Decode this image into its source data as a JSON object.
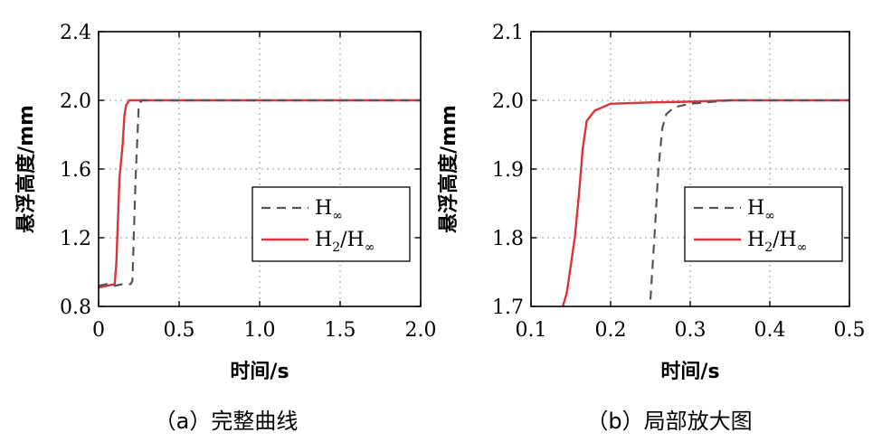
{
  "chart_data": [
    {
      "type": "line",
      "xlabel": "时间/s",
      "ylabel": "悬浮高度/mm",
      "caption": "（a）完整曲线",
      "xlim": [
        0,
        2.0
      ],
      "ylim": [
        0.8,
        2.4
      ],
      "xticks": [
        "0",
        "0.5",
        "1.0",
        "1.5",
        "2.0"
      ],
      "yticks": [
        "0.8",
        "1.2",
        "1.6",
        "2.0",
        "2.4"
      ],
      "grid": true,
      "legend_position": "center-right",
      "series": [
        {
          "name": "H∞",
          "style": "dashed",
          "color": "#555555",
          "x": [
            0,
            0.05,
            0.1,
            0.15,
            0.2,
            0.21,
            0.23,
            0.25,
            0.27,
            0.3,
            0.5,
            1.0,
            1.5,
            2.0
          ],
          "y": [
            0.92,
            0.93,
            0.92,
            0.93,
            0.93,
            0.95,
            1.55,
            1.98,
            2.0,
            2.0,
            2.0,
            2.0,
            2.0,
            2.0
          ]
        },
        {
          "name": "H2/H∞",
          "style": "solid",
          "color": "#d9343c",
          "x": [
            0,
            0.05,
            0.1,
            0.11,
            0.13,
            0.15,
            0.16,
            0.17,
            0.19,
            0.25,
            0.5,
            1.0,
            1.5,
            2.0
          ],
          "y": [
            0.91,
            0.92,
            0.93,
            1.05,
            1.55,
            1.75,
            1.91,
            1.97,
            2.0,
            2.0,
            2.0,
            2.0,
            2.0,
            2.0
          ]
        }
      ]
    },
    {
      "type": "line",
      "xlabel": "时间/s",
      "ylabel": "悬浮高度/mm",
      "caption": "（b）局部放大图",
      "xlim": [
        0.1,
        0.5
      ],
      "ylim": [
        1.7,
        2.1
      ],
      "xticks": [
        "0.1",
        "0.2",
        "0.3",
        "0.4",
        "0.5"
      ],
      "yticks": [
        "1.7",
        "1.8",
        "1.9",
        "2.0",
        "2.1"
      ],
      "grid": true,
      "legend_position": "center-right",
      "series": [
        {
          "name": "H∞",
          "style": "dashed",
          "color": "#555555",
          "x": [
            0.25,
            0.255,
            0.26,
            0.265,
            0.27,
            0.28,
            0.3,
            0.35,
            0.4,
            0.45,
            0.5
          ],
          "y": [
            1.71,
            1.8,
            1.9,
            1.96,
            1.98,
            1.99,
            1.995,
            2.0,
            2.0,
            2.0,
            2.0
          ]
        },
        {
          "name": "H2/H∞",
          "style": "solid",
          "color": "#d9343c",
          "x": [
            0.14,
            0.145,
            0.15,
            0.155,
            0.16,
            0.165,
            0.17,
            0.18,
            0.2,
            0.25,
            0.3,
            0.35,
            0.4,
            0.45,
            0.5
          ],
          "y": [
            1.7,
            1.72,
            1.76,
            1.8,
            1.86,
            1.93,
            1.97,
            1.985,
            1.995,
            1.997,
            1.998,
            2.0,
            2.0,
            2.0,
            2.0
          ]
        }
      ]
    }
  ],
  "legend": {
    "h_inf": {
      "base": "H",
      "sub": "∞"
    },
    "h2_h_inf": {
      "base1": "H",
      "sub1": "2",
      "slash": "/H",
      "sub2": "∞"
    }
  }
}
